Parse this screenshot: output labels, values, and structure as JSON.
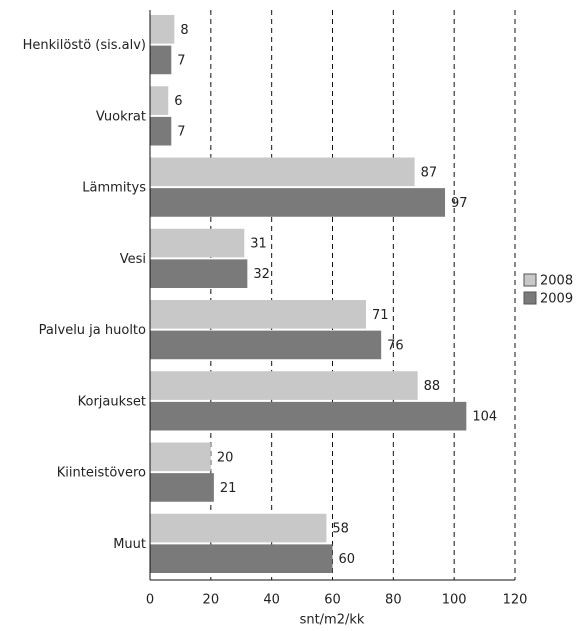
{
  "chart_data": {
    "type": "barh",
    "categories": [
      "Henkilöstö (sis.alv)",
      "Vuokrat",
      "Lämmitys",
      "Vesi",
      "Palvelu ja huolto",
      "Korjaukset",
      "Kiinteistövero",
      "Muut"
    ],
    "series": [
      {
        "name": "2008",
        "color": "#c8c8c8",
        "values": [
          8,
          6,
          87,
          31,
          71,
          88,
          20,
          58
        ]
      },
      {
        "name": "2009",
        "color": "#7a7a7a",
        "values": [
          7,
          7,
          97,
          32,
          76,
          104,
          21,
          60
        ]
      }
    ],
    "xlim": [
      0,
      120
    ],
    "xticks": [
      0,
      20,
      40,
      60,
      80,
      100,
      120
    ],
    "x_label": "snt/m2/kk",
    "grid": true,
    "legend": "right"
  }
}
